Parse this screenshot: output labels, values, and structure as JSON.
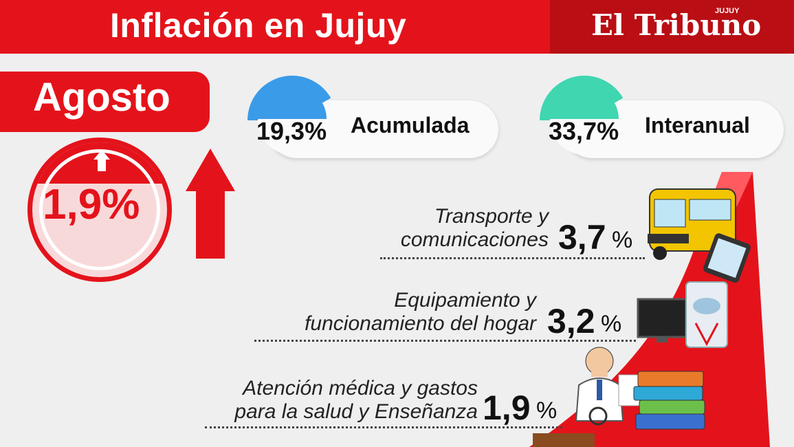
{
  "header": {
    "title": "Inflación en Jujuy",
    "logo": "El Tribuno",
    "logo_sub": "JUJUY"
  },
  "month": {
    "label": "Agosto",
    "value": "1,9%"
  },
  "indicators": [
    {
      "value": "19,3%",
      "label": "Acumulada",
      "color": "#3a9be8"
    },
    {
      "value": "33,7%",
      "label": "Interanual",
      "color": "#3fd6b0"
    }
  ],
  "categories": [
    {
      "line1": "Transporte y",
      "line2": "comunicaciones",
      "value": "3,7",
      "pct": "%"
    },
    {
      "line1": "Equipamiento y",
      "line2": "funcionamiento del hogar",
      "value": "3,2",
      "pct": "%"
    },
    {
      "line1": "Atención médica y gastos",
      "line2": "para la salud y Enseñanza",
      "value": "1,9",
      "pct": "%"
    }
  ],
  "icons": [
    "bus-icon",
    "phone-icon",
    "tv-icon",
    "washing-machine-icon",
    "doctor-icon",
    "books-icon"
  ],
  "colors": {
    "accent": "#e4131b",
    "dark_red": "#b90e14",
    "background": "#efefef"
  }
}
